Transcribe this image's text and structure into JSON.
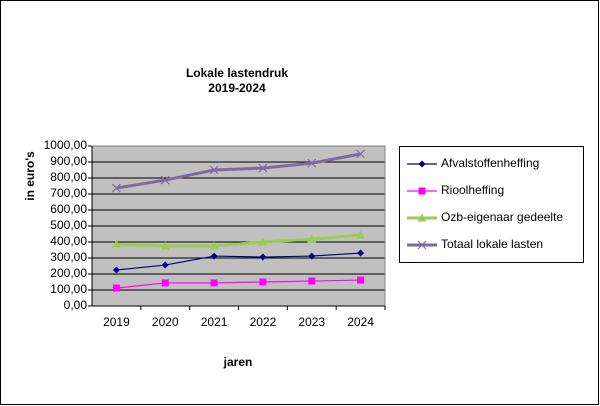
{
  "chart_data": {
    "type": "line",
    "title": "Lokale lastendruk",
    "subtitle": "2019-2024",
    "x_label": "jaren",
    "y_label": "in euro's",
    "categories": [
      "2019",
      "2020",
      "2021",
      "2022",
      "2023",
      "2024"
    ],
    "series": [
      {
        "name": "Afvalstoffenheffing",
        "color": "#000080",
        "marker": "diamond",
        "values": [
          225,
          256,
          312,
          306,
          312,
          331
        ]
      },
      {
        "name": "Rioolheffing",
        "color": "#ff00ff",
        "marker": "square",
        "values": [
          112,
          144,
          144,
          150,
          156,
          162
        ]
      },
      {
        "name": "Ozb-eigenaar gedeelte",
        "color": "#99cc55",
        "marker": "triangle",
        "values": [
          387,
          375,
          375,
          400,
          418,
          443
        ]
      },
      {
        "name": "Totaal lokale lasten",
        "color": "#7f6a9f",
        "marker": "cross",
        "values": [
          737,
          787,
          850,
          862,
          893,
          950
        ]
      }
    ],
    "ylim": [
      0,
      1000
    ],
    "yticks": [
      {
        "value": 0,
        "label": "0,00"
      },
      {
        "value": 100,
        "label": "100,00"
      },
      {
        "value": 200,
        "label": "200,00"
      },
      {
        "value": 300,
        "label": "300,00"
      },
      {
        "value": 400,
        "label": "400,00"
      },
      {
        "value": 500,
        "label": "500,00"
      },
      {
        "value": 600,
        "label": "600,00"
      },
      {
        "value": 700,
        "label": "700,00"
      },
      {
        "value": 800,
        "label": "800,00"
      },
      {
        "value": 900,
        "label": "900,00"
      },
      {
        "value": 1000,
        "label": "1000,00"
      }
    ],
    "grid": true,
    "legend": "right",
    "plot_background": "#c0c0c0"
  }
}
